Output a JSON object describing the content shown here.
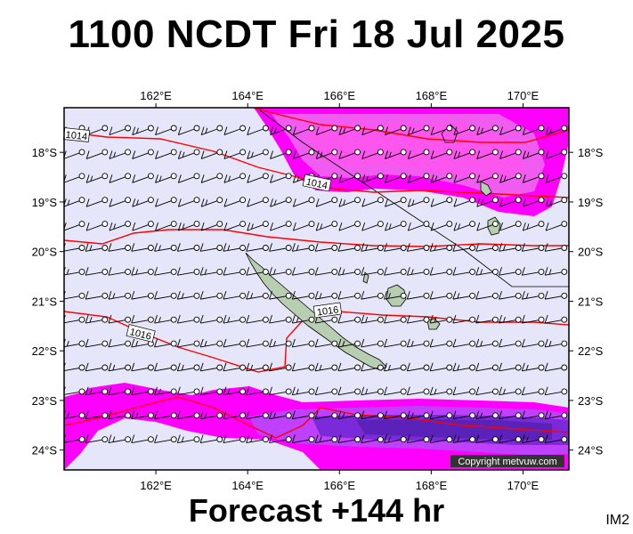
{
  "title": "1100 NCDT Fri 18 Jul 2025",
  "footer": "Forecast +144 hr",
  "code": "IM2",
  "copyright": "Copyright metvuw.com",
  "map": {
    "lon_range": [
      160.0,
      171.0
    ],
    "lat_range": [
      -24.4,
      -17.1
    ],
    "lon_ticks": [
      "162°E",
      "164°E",
      "166°E",
      "168°E",
      "170°E"
    ],
    "lon_tick_values": [
      162,
      164,
      166,
      168,
      170
    ],
    "lat_ticks": [
      "18°S",
      "19°S",
      "20°S",
      "21°S",
      "22°S",
      "23°S",
      "24°S"
    ],
    "lat_tick_values": [
      -18,
      -19,
      -20,
      -21,
      -22,
      -23,
      -24
    ],
    "isobar_labels": [
      "1014",
      "1014",
      "1016",
      "1016"
    ],
    "colors": {
      "background": "#e6e6fa",
      "rain_light": "#ff00ff",
      "rain_mid": "#c040ff",
      "rain_heavy": "#7a2ad8",
      "isobar": "#ff0000",
      "land": "#b8ceb0"
    }
  }
}
